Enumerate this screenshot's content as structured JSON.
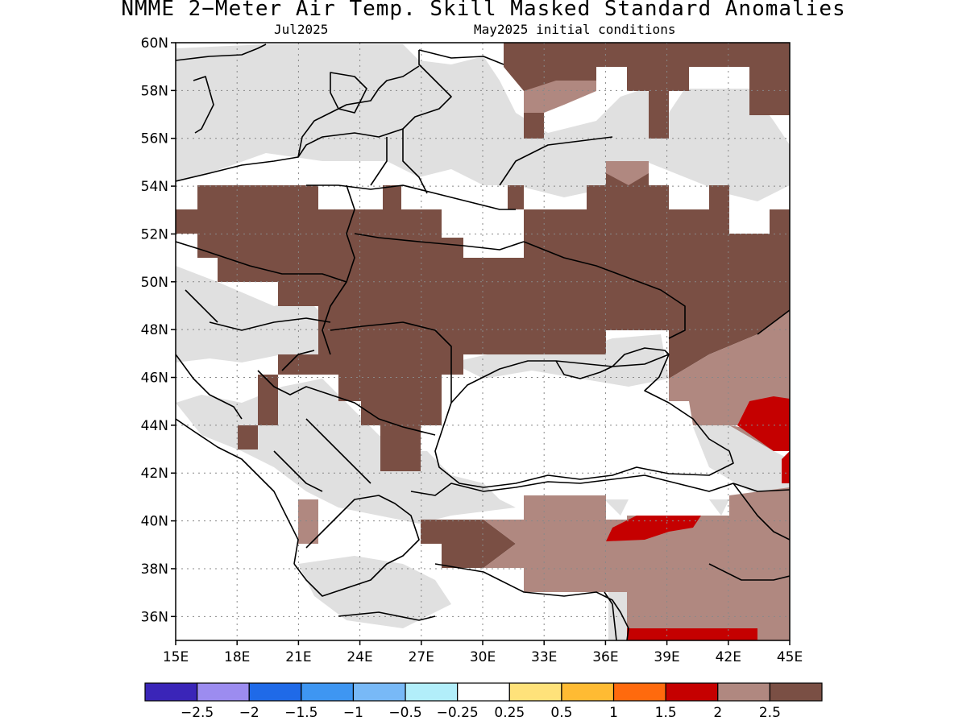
{
  "title": "NMME 2−Meter Air Temp. Skill Masked Standard Anomalies",
  "subtitle_left": "Jul2025",
  "subtitle_right": "May2025 initial conditions",
  "map": {
    "lon_range": [
      15,
      45
    ],
    "lat_range": [
      35,
      60
    ],
    "lat_ticks": [
      {
        "value": 60,
        "label": "60N"
      },
      {
        "value": 58,
        "label": "58N"
      },
      {
        "value": 56,
        "label": "56N"
      },
      {
        "value": 54,
        "label": "54N"
      },
      {
        "value": 52,
        "label": "52N"
      },
      {
        "value": 50,
        "label": "50N"
      },
      {
        "value": 48,
        "label": "48N"
      },
      {
        "value": 46,
        "label": "46N"
      },
      {
        "value": 44,
        "label": "44N"
      },
      {
        "value": 42,
        "label": "42N"
      },
      {
        "value": 40,
        "label": "40N"
      },
      {
        "value": 38,
        "label": "38N"
      },
      {
        "value": 36,
        "label": "36N"
      }
    ],
    "lon_ticks": [
      {
        "value": 15,
        "label": "15E"
      },
      {
        "value": 18,
        "label": "18E"
      },
      {
        "value": 21,
        "label": "21E"
      },
      {
        "value": 24,
        "label": "24E"
      },
      {
        "value": 27,
        "label": "27E"
      },
      {
        "value": 30,
        "label": "30E"
      },
      {
        "value": 33,
        "label": "33E"
      },
      {
        "value": 36,
        "label": "36E"
      },
      {
        "value": 39,
        "label": "39E"
      },
      {
        "value": 42,
        "label": "42E"
      },
      {
        "value": 45,
        "label": "45E"
      }
    ]
  },
  "colorbar": {
    "colors": [
      "#3a25b8",
      "#9c8cf0",
      "#1f6ae8",
      "#3e96f2",
      "#78b9f7",
      "#b2eefa",
      "#ffffff",
      "#ffe27a",
      "#ffbb33",
      "#ff6a0d",
      "#c50000",
      "#b08880",
      "#7a4f44"
    ],
    "labels": [
      "−2.5",
      "−2",
      "−1.5",
      "−1",
      "−0.5",
      "−0.25",
      "0.25",
      "0.5",
      "1",
      "1.5",
      "2",
      "2.5"
    ]
  },
  "fill_colors": {
    "gray": "#e0e0e0",
    "dark_brown": "#7a4f44",
    "light_brown": "#b08880",
    "red": "#c50000"
  }
}
